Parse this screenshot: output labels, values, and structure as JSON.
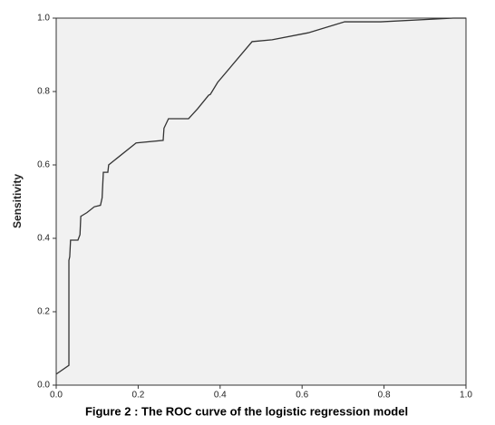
{
  "chart_data": {
    "type": "line",
    "title": "Figure 2 : The ROC curve of the logistic regression model",
    "y_label": "Sensitivity",
    "x": [
      0,
      0.031,
      0.031,
      0.033,
      0.035,
      0.053,
      0.058,
      0.06,
      0.075,
      0.093,
      0.108,
      0.112,
      0.115,
      0.126,
      0.128,
      0.195,
      0.261,
      0.263,
      0.274,
      0.323,
      0.345,
      0.372,
      0.376,
      0.394,
      0.478,
      0.527,
      0.615,
      0.704,
      0.792,
      0.969,
      1.0
    ],
    "series": [
      {
        "name": "ROC",
        "color": "#333333",
        "values": [
          0.03,
          0.054,
          0.34,
          0.35,
          0.395,
          0.395,
          0.41,
          0.46,
          0.47,
          0.486,
          0.49,
          0.51,
          0.58,
          0.58,
          0.6,
          0.66,
          0.667,
          0.7,
          0.726,
          0.726,
          0.753,
          0.79,
          0.792,
          0.825,
          0.936,
          0.941,
          0.96,
          0.99,
          0.99,
          1.0,
          1.0
        ]
      }
    ],
    "xlim": [
      0,
      1
    ],
    "ylim": [
      0,
      1
    ],
    "xticks": [
      {
        "value": 0,
        "label": "0.0"
      },
      {
        "value": 0.2,
        "label": "0.2"
      },
      {
        "value": 0.4,
        "label": "0.4"
      },
      {
        "value": 0.6,
        "label": "0.6"
      },
      {
        "value": 0.8,
        "label": "0.8"
      },
      {
        "value": 1,
        "label": "1.0"
      }
    ],
    "yticks": [
      {
        "value": 0,
        "label": "0.0"
      },
      {
        "value": 0.2,
        "label": "0.2"
      },
      {
        "value": 0.4,
        "label": "0.4"
      },
      {
        "value": 0.6,
        "label": "0.6"
      },
      {
        "value": 0.8,
        "label": "0.8"
      },
      {
        "value": 1,
        "label": "1.0"
      }
    ],
    "grid": false,
    "background": "#f1f1f1"
  }
}
